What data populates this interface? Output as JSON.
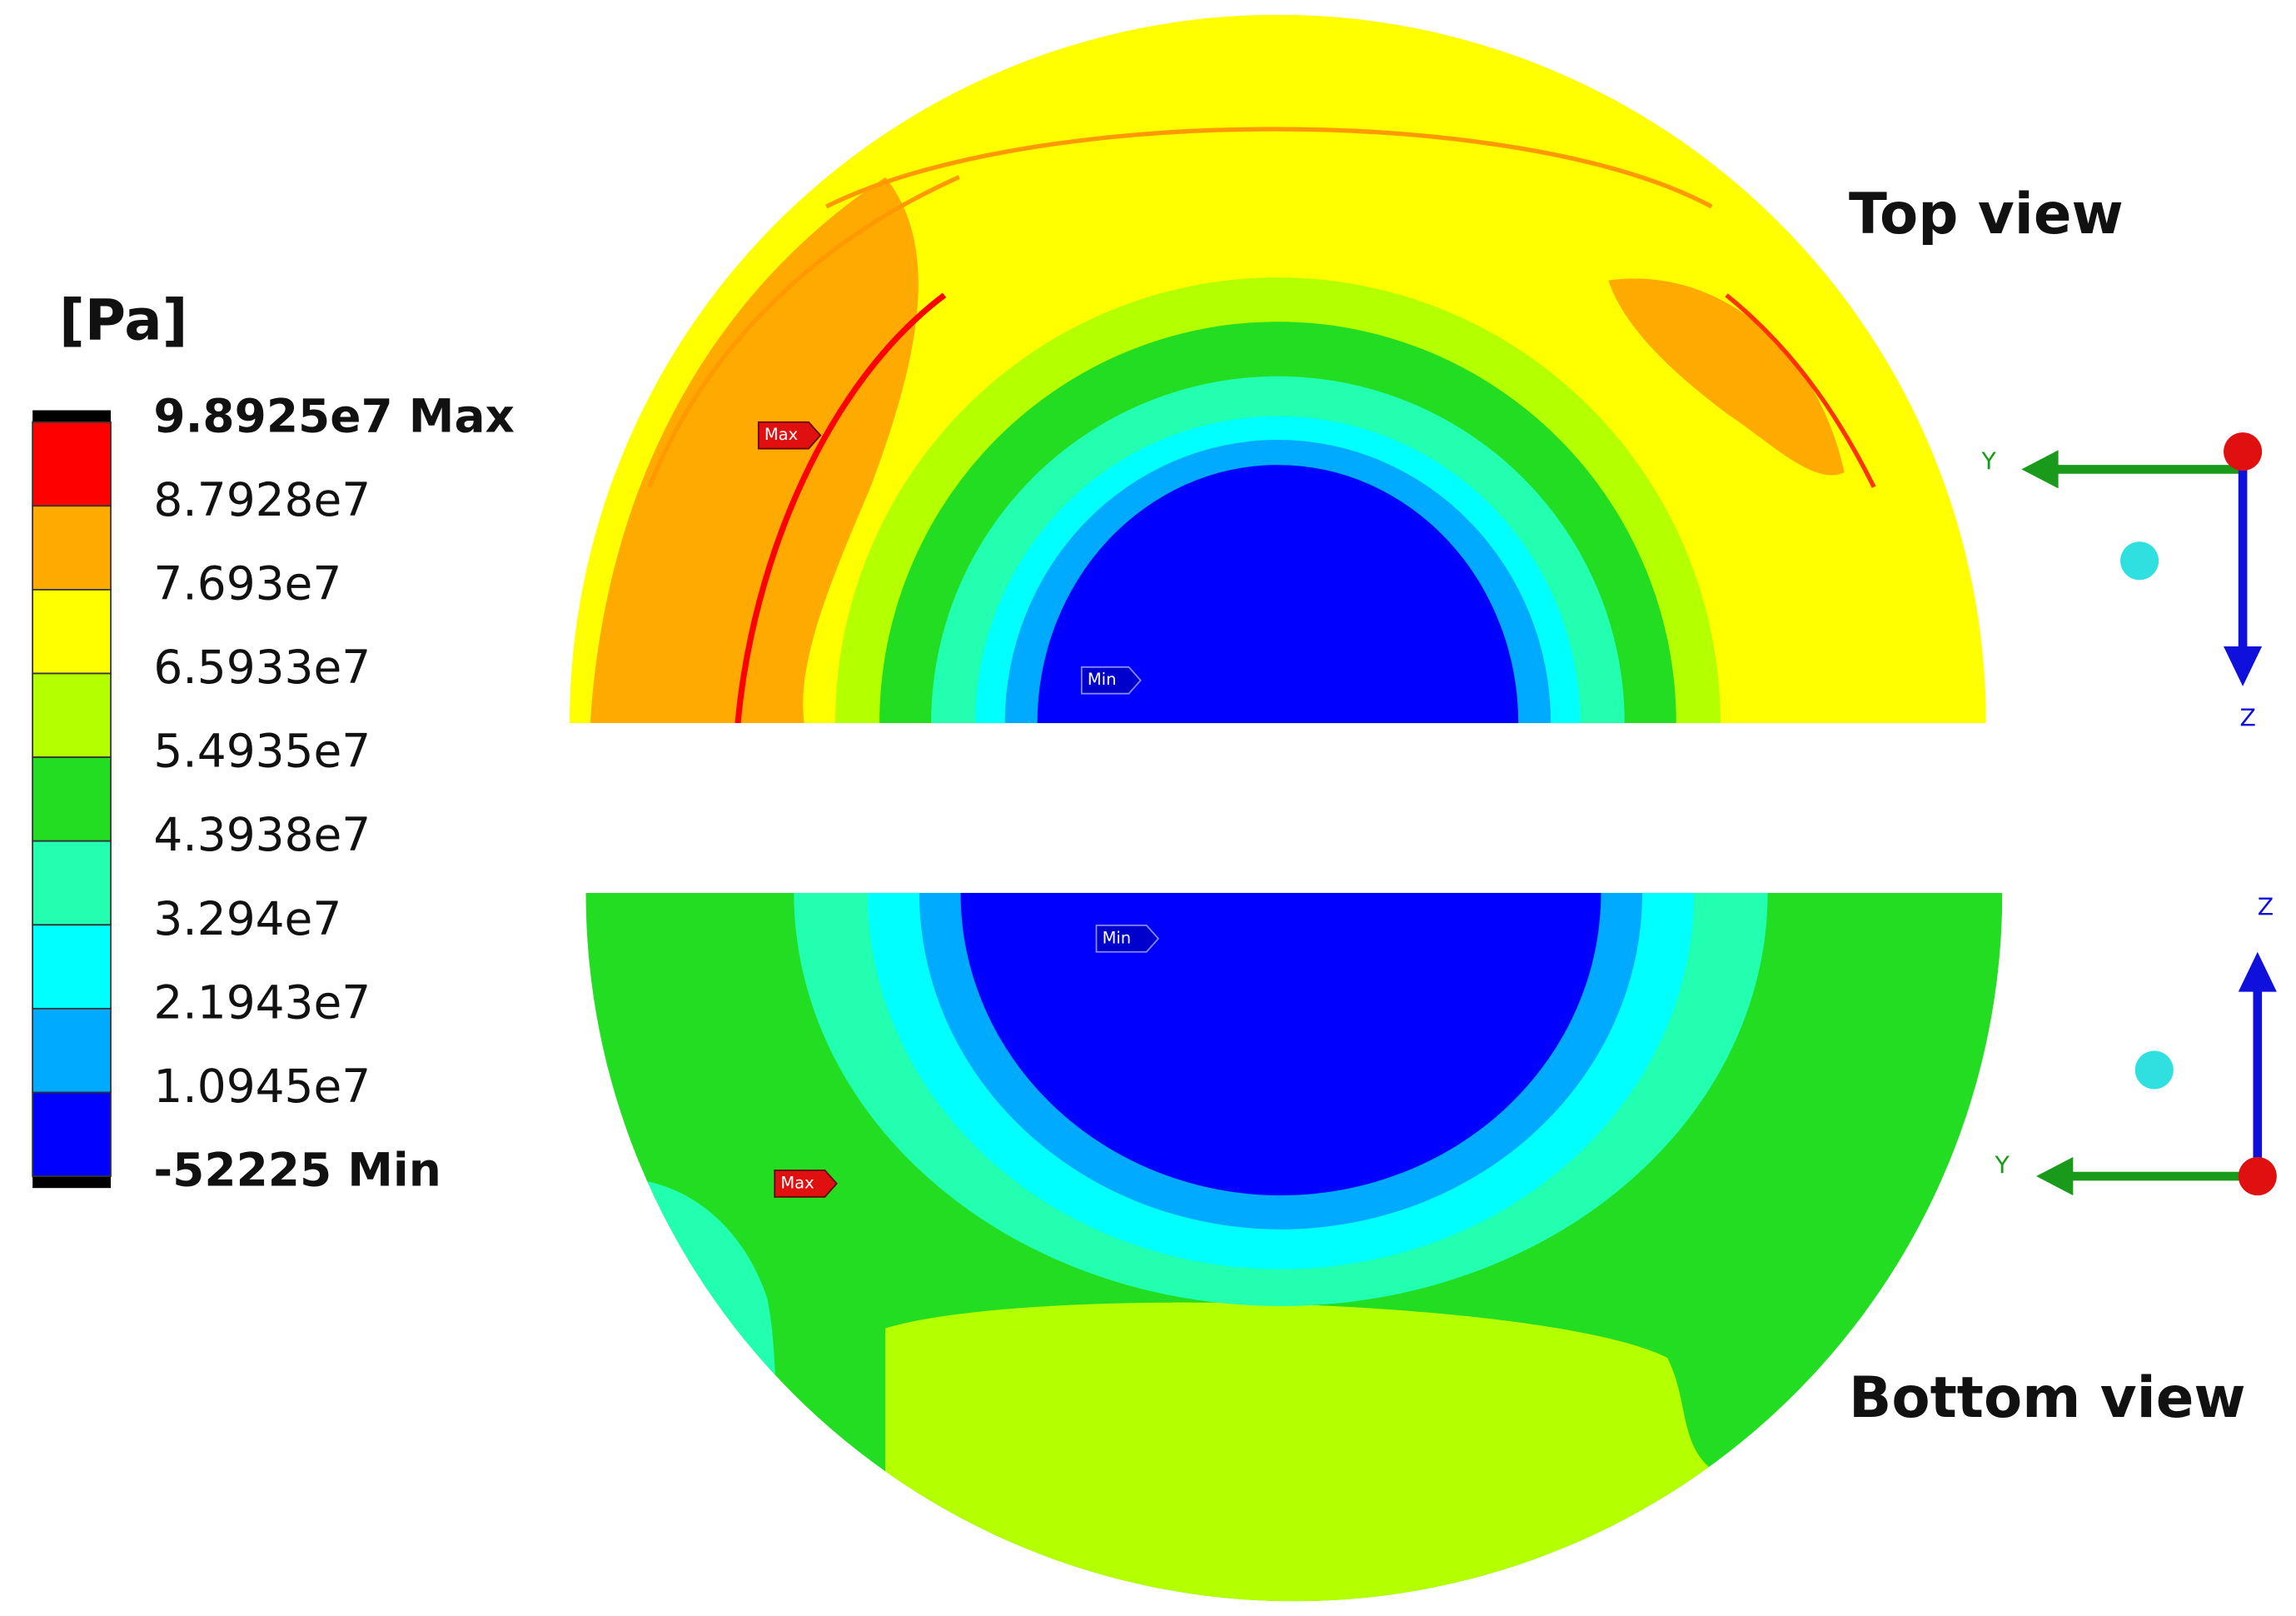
{
  "legend": {
    "unit": "[Pa]",
    "labels": [
      "9.8925e7 Max",
      "8.7928e7",
      "7.693e7",
      "6.5933e7",
      "5.4935e7",
      "4.3938e7",
      "3.294e7",
      "2.1943e7",
      "1.0945e7",
      "-52225 Min"
    ],
    "colors": [
      "#ff0000",
      "#ffaa00",
      "#ffff00",
      "#b4ff00",
      "#22dd22",
      "#22ffb0",
      "#00ffff",
      "#00aaff",
      "#0000ff"
    ]
  },
  "views": [
    {
      "title": "Top view",
      "axis_y": "Y",
      "axis_z": "Z",
      "max_tag": "Max",
      "min_tag": "Min"
    },
    {
      "title": "Bottom view",
      "axis_y": "Y",
      "axis_z": "Z",
      "max_tag": "Max",
      "min_tag": "Min"
    }
  ]
}
